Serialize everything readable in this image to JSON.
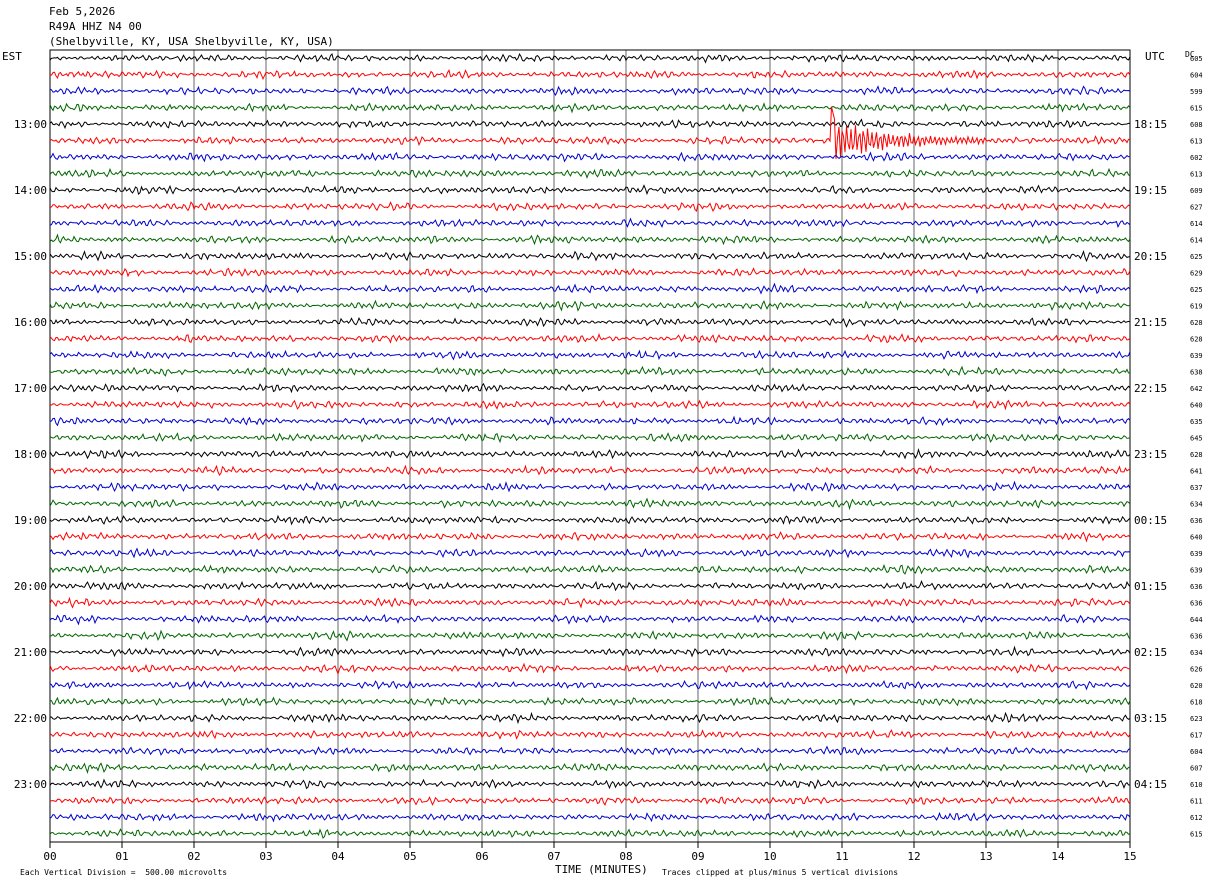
{
  "header": {
    "date": "Feb 5,2026",
    "station": "R49A HHZ N4 00",
    "location": "(Shelbyville, KY, USA Shelbyville, KY, USA)"
  },
  "left_timezone": "EST",
  "right_timezone": "UTC",
  "dc_label": "DC",
  "footer": {
    "scale_note": "Each Vertical Division =  500.00 microvolts",
    "xlabel": "TIME (MINUTES)",
    "clip_note": "Traces clipped at plus/minus 5 vertical divisions"
  },
  "colors": {
    "trace_cycle": [
      "#000000",
      "#ff0000",
      "#0000cc",
      "#006600"
    ],
    "grid": "#000000"
  },
  "chart_data": {
    "type": "line",
    "title": "R49A HHZ N4 00",
    "xlabel": "TIME (MINUTES)",
    "xlim": [
      0,
      15
    ],
    "x_ticks": [
      "00",
      "01",
      "02",
      "03",
      "04",
      "05",
      "06",
      "07",
      "08",
      "09",
      "10",
      "11",
      "12",
      "13",
      "14",
      "15"
    ],
    "left_hour_labels": [
      "13:00",
      "14:00",
      "15:00",
      "16:00",
      "17:00",
      "18:00",
      "19:00",
      "20:00",
      "21:00",
      "22:00",
      "23:00"
    ],
    "right_hour_labels": [
      "18:15",
      "19:15",
      "20:15",
      "21:15",
      "22:15",
      "23:15",
      "00:15",
      "01:15",
      "02:15",
      "03:15",
      "04:15"
    ],
    "dc_offsets": [
      605,
      604,
      599,
      615,
      608,
      613,
      602,
      613,
      609,
      627,
      614,
      614,
      625,
      629,
      625,
      619,
      628,
      628,
      639,
      638,
      642,
      640,
      635,
      645,
      628,
      641,
      637,
      634,
      636,
      640,
      639,
      639,
      636,
      636,
      644,
      636,
      634,
      626,
      620,
      618,
      623,
      617,
      604,
      607,
      610,
      611,
      612,
      615
    ],
    "event": {
      "trace_index": 5,
      "start_minute": 10.85,
      "end_minute": 13.0,
      "color": "#ff0000"
    }
  }
}
